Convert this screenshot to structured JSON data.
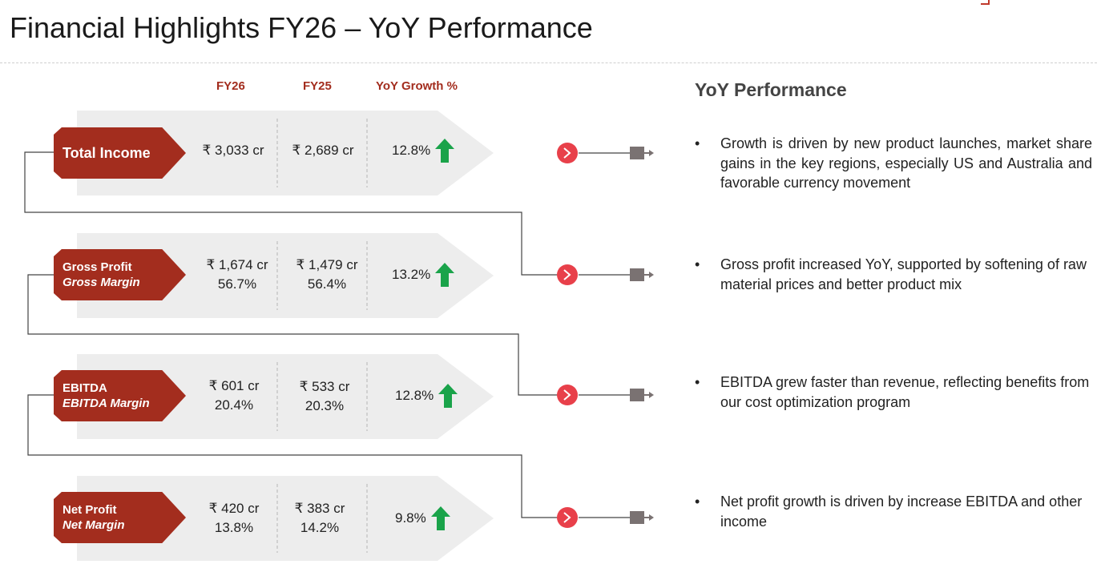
{
  "header": {
    "title": "Financial Highlights FY26 – YoY Performance"
  },
  "columns": {
    "fy26": "FY26",
    "fy25": "FY25",
    "growth": "YoY Growth %"
  },
  "rows": [
    {
      "metric": "Total Income",
      "metric_sub": "",
      "fy26_value": "₹ 3,033 cr",
      "fy26_margin": "",
      "fy25_value": "₹ 2,689 cr",
      "fy25_margin": "",
      "growth": "12.8%",
      "growth_direction": "up-arrow-icon"
    },
    {
      "metric": "Gross Profit",
      "metric_sub": "Gross Margin",
      "fy26_value": "₹ 1,674 cr",
      "fy26_margin": "56.7%",
      "fy25_value": "₹ 1,479 cr",
      "fy25_margin": "56.4%",
      "growth": "13.2%",
      "growth_direction": "up-arrow-icon"
    },
    {
      "metric": "EBITDA",
      "metric_sub": "EBITDA Margin",
      "fy26_value": "₹ 601 cr",
      "fy26_margin": "20.4%",
      "fy25_value": "₹ 533 cr",
      "fy25_margin": "20.3%",
      "growth": "12.8%",
      "growth_direction": "up-arrow-icon"
    },
    {
      "metric": "Net Profit",
      "metric_sub": "Net Margin",
      "fy26_value": "₹ 420 cr",
      "fy26_margin": "13.8%",
      "fy25_value": "₹ 383 cr",
      "fy25_margin": "14.2%",
      "growth": "9.8%",
      "growth_direction": "up-arrow-icon"
    }
  ],
  "commentary": {
    "title": "YoY Performance",
    "bullets": [
      "Growth is driven by new product launches, market share gains in the key regions, especially US and Australia and favorable currency movement",
      "Gross profit increased YoY, supported by softening of raw material prices and better product mix",
      "EBITDA grew faster than revenue, reflecting benefits from our cost optimization program",
      "Net profit growth is driven by increase EBITDA and other income"
    ]
  },
  "colors": {
    "accent": "#a32d1e",
    "panel": "#ededed",
    "arrow_up": "#1aa34a",
    "chevron_circle": "#e8404a",
    "connector_end": "#7a7272",
    "line": "#444444"
  }
}
